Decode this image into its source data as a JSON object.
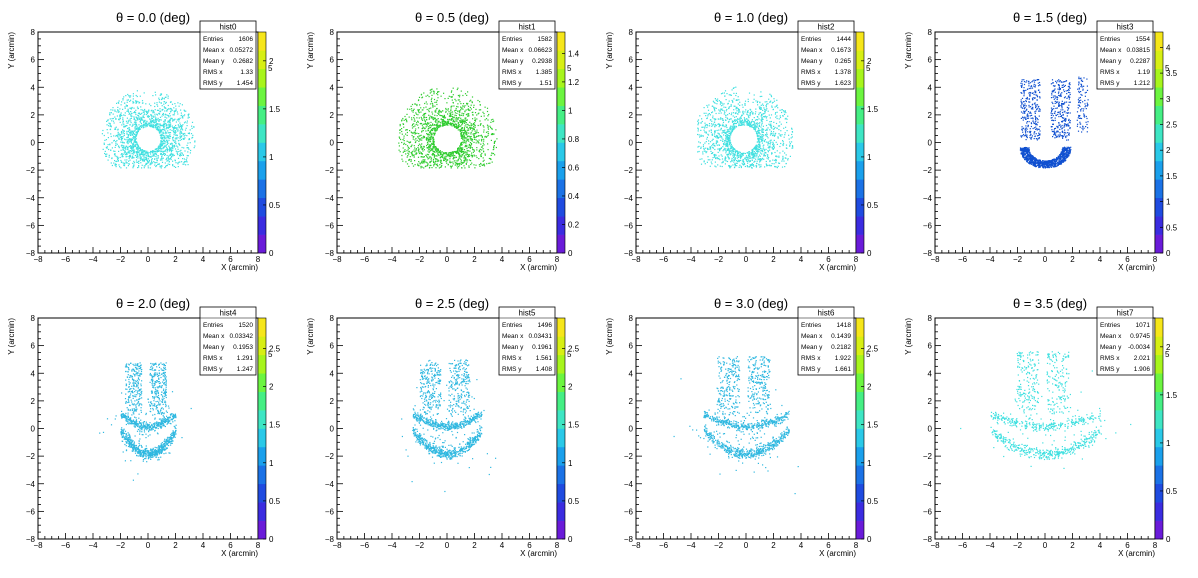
{
  "chart_data": [
    {
      "type": "scatter",
      "title": "θ = 0.0 (deg)",
      "stats_name": "hist0",
      "stats": [
        [
          "Entries",
          "1606"
        ],
        [
          "Mean x",
          "0.05272"
        ],
        [
          "Mean y",
          "0.2682"
        ],
        [
          "RMS x",
          "1.33"
        ],
        [
          "RMS y",
          "1.454"
        ]
      ],
      "xlabel": "X (arcmin)",
      "ylabel": "Y (arcmin)",
      "xlim": [
        -8,
        8
      ],
      "ylim": [
        -8,
        8
      ],
      "xticks": [
        -8,
        -6,
        -4,
        -2,
        0,
        2,
        4,
        6,
        8
      ],
      "yticks": [
        -8,
        -6,
        -4,
        -2,
        0,
        2,
        4,
        6,
        8
      ],
      "z_ticks": [
        "0",
        "0.5",
        "1",
        "1.5",
        "2"
      ],
      "z_max": 2.3,
      "marker_color": "#40e0e0",
      "points_descr": {
        "shape": "ring",
        "inner_radius": 0.9,
        "outer_radius": 3.6,
        "center": [
          0,
          0.3
        ],
        "count": 1606
      }
    },
    {
      "type": "scatter",
      "title": "θ = 0.5 (deg)",
      "stats_name": "hist1",
      "stats": [
        [
          "Entries",
          "1582"
        ],
        [
          "Mean x",
          "0.06623"
        ],
        [
          "Mean y",
          "0.2938"
        ],
        [
          "RMS x",
          "1.385"
        ],
        [
          "RMS y",
          "1.51"
        ]
      ],
      "xlabel": "X (arcmin)",
      "ylabel": "Y (arcmin)",
      "xlim": [
        -8,
        8
      ],
      "ylim": [
        -8,
        8
      ],
      "xticks": [
        -8,
        -6,
        -4,
        -2,
        0,
        2,
        4,
        6,
        8
      ],
      "yticks": [
        -8,
        -6,
        -4,
        -2,
        0,
        2,
        4,
        6,
        8
      ],
      "z_ticks": [
        "0",
        "0.2",
        "0.4",
        "0.6",
        "0.8",
        "1",
        "1.2",
        "1.4"
      ],
      "z_max": 1.55,
      "marker_color": "#30cc30",
      "points_descr": {
        "shape": "ring",
        "inner_radius": 1.0,
        "outer_radius": 3.8,
        "center": [
          0,
          0.3
        ],
        "count": 1582
      }
    },
    {
      "type": "scatter",
      "title": "θ = 1.0 (deg)",
      "stats_name": "hist2",
      "stats": [
        [
          "Entries",
          "1444"
        ],
        [
          "Mean x",
          "0.1673"
        ],
        [
          "Mean y",
          "0.265"
        ],
        [
          "RMS x",
          "1.378"
        ],
        [
          "RMS y",
          "1.623"
        ]
      ],
      "xlabel": "X (arcmin)",
      "ylabel": "Y (arcmin)",
      "xlim": [
        -8,
        8
      ],
      "ylim": [
        -8,
        8
      ],
      "xticks": [
        -8,
        -6,
        -4,
        -2,
        0,
        2,
        4,
        6,
        8
      ],
      "yticks": [
        -8,
        -6,
        -4,
        -2,
        0,
        2,
        4,
        6,
        8
      ],
      "z_ticks": [
        "0",
        "0.5",
        "1",
        "1.5",
        "2"
      ],
      "z_max": 2.3,
      "marker_color": "#40e0e0",
      "points_descr": {
        "shape": "ring",
        "inner_radius": 1.0,
        "outer_radius": 3.8,
        "center": [
          -0.2,
          0.3
        ],
        "count": 1444
      }
    },
    {
      "type": "scatter",
      "title": "θ = 1.5 (deg)",
      "stats_name": "hist3",
      "stats": [
        [
          "Entries",
          "1554"
        ],
        [
          "Mean x",
          "0.03815"
        ],
        [
          "Mean y",
          "0.2287"
        ],
        [
          "RMS x",
          "1.19"
        ],
        [
          "RMS y",
          "1.212"
        ]
      ],
      "xlabel": "X (arcmin)",
      "ylabel": "Y (arcmin)",
      "xlim": [
        -8,
        8
      ],
      "ylim": [
        -8,
        8
      ],
      "xticks": [
        -8,
        -6,
        -4,
        -2,
        0,
        2,
        4,
        6,
        8
      ],
      "yticks": [
        -8,
        -6,
        -4,
        -2,
        0,
        2,
        4,
        6,
        8
      ],
      "z_ticks": [
        "0",
        "0.5",
        "1",
        "1.5",
        "2",
        "2.5",
        "3",
        "3.5",
        "4"
      ],
      "z_max": 4.3,
      "marker_color": "#1050d0",
      "points_descr": {
        "shape": "crescent",
        "center": [
          0,
          0
        ],
        "count": 1554
      }
    },
    {
      "type": "scatter",
      "title": "θ = 2.0 (deg)",
      "stats_name": "hist4",
      "stats": [
        [
          "Entries",
          "1520"
        ],
        [
          "Mean x",
          "0.03342"
        ],
        [
          "Mean y",
          "0.1953"
        ],
        [
          "RMS x",
          "1.291"
        ],
        [
          "RMS y",
          "1.247"
        ]
      ],
      "xlabel": "X (arcmin)",
      "ylabel": "Y (arcmin)",
      "xlim": [
        -8,
        8
      ],
      "ylim": [
        -8,
        8
      ],
      "xticks": [
        -8,
        -6,
        -4,
        -2,
        0,
        2,
        4,
        6,
        8
      ],
      "yticks": [
        -8,
        -6,
        -4,
        -2,
        0,
        2,
        4,
        6,
        8
      ],
      "z_ticks": [
        "0",
        "0.5",
        "1",
        "1.5",
        "2",
        "2.5"
      ],
      "z_max": 2.9,
      "marker_color": "#30b8e0",
      "points_descr": {
        "shape": "lips",
        "half_width": 2.0,
        "count": 1520
      }
    },
    {
      "type": "scatter",
      "title": "θ = 2.5 (deg)",
      "stats_name": "hist5",
      "stats": [
        [
          "Entries",
          "1496"
        ],
        [
          "Mean x",
          "0.03431"
        ],
        [
          "Mean y",
          "0.1961"
        ],
        [
          "RMS x",
          "1.561"
        ],
        [
          "RMS y",
          "1.408"
        ]
      ],
      "xlabel": "X (arcmin)",
      "ylabel": "Y (arcmin)",
      "xlim": [
        -8,
        8
      ],
      "ylim": [
        -8,
        8
      ],
      "xticks": [
        -8,
        -6,
        -4,
        -2,
        0,
        2,
        4,
        6,
        8
      ],
      "yticks": [
        -8,
        -6,
        -4,
        -2,
        0,
        2,
        4,
        6,
        8
      ],
      "z_ticks": [
        "0",
        "0.5",
        "1",
        "1.5",
        "2",
        "2.5"
      ],
      "z_max": 2.9,
      "marker_color": "#30b8e0",
      "points_descr": {
        "shape": "lips",
        "half_width": 2.5,
        "count": 1496
      }
    },
    {
      "type": "scatter",
      "title": "θ = 3.0 (deg)",
      "stats_name": "hist6",
      "stats": [
        [
          "Entries",
          "1418"
        ],
        [
          "Mean x",
          "0.1439"
        ],
        [
          "Mean y",
          "0.2182"
        ],
        [
          "RMS x",
          "1.922"
        ],
        [
          "RMS y",
          "1.661"
        ]
      ],
      "xlabel": "X (arcmin)",
      "ylabel": "Y (arcmin)",
      "xlim": [
        -8,
        8
      ],
      "ylim": [
        -8,
        8
      ],
      "xticks": [
        -8,
        -6,
        -4,
        -2,
        0,
        2,
        4,
        6,
        8
      ],
      "yticks": [
        -8,
        -6,
        -4,
        -2,
        0,
        2,
        4,
        6,
        8
      ],
      "z_ticks": [
        "0",
        "0.5",
        "1",
        "1.5",
        "2",
        "2.5"
      ],
      "z_max": 2.9,
      "marker_color": "#30b8e0",
      "points_descr": {
        "shape": "lips",
        "half_width": 3.1,
        "count": 1418
      }
    },
    {
      "type": "scatter",
      "title": "θ = 3.5 (deg)",
      "stats_name": "hist7",
      "stats": [
        [
          "Entries",
          "1071"
        ],
        [
          "Mean x",
          "0.9745"
        ],
        [
          "Mean y",
          "-0.0034"
        ],
        [
          "RMS x",
          "2.021"
        ],
        [
          "RMS y",
          "1.906"
        ]
      ],
      "xlabel": "X (arcmin)",
      "ylabel": "Y (arcmin)",
      "xlim": [
        -8,
        8
      ],
      "ylim": [
        -8,
        8
      ],
      "xticks": [
        -8,
        -6,
        -4,
        -2,
        0,
        2,
        4,
        6,
        8
      ],
      "yticks": [
        -8,
        -6,
        -4,
        -2,
        0,
        2,
        4,
        6,
        8
      ],
      "z_ticks": [
        "0",
        "0.5",
        "1",
        "1.5",
        "2"
      ],
      "z_max": 2.3,
      "marker_color": "#40e0e0",
      "points_descr": {
        "shape": "lips",
        "half_width": 4.0,
        "count": 1071
      }
    }
  ]
}
